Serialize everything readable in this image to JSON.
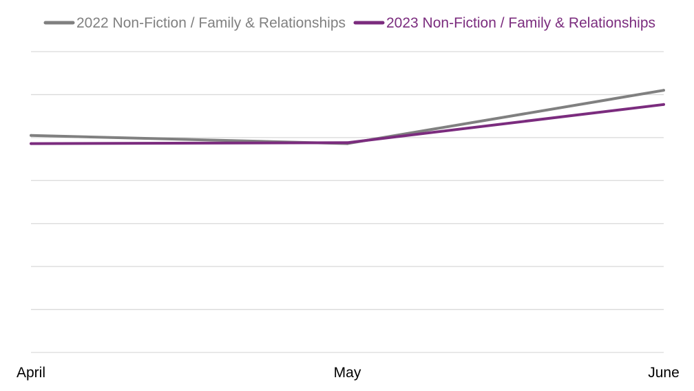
{
  "chart_data": {
    "type": "line",
    "title": "",
    "xlabel": "",
    "ylabel": "",
    "categories": [
      "April",
      "May",
      "June"
    ],
    "series": [
      {
        "name": "2022 Non-Fiction / Family & Relationships",
        "color": "#808080",
        "values": [
          5.05,
          4.86,
          6.1
        ]
      },
      {
        "name": "2023 Non-Fiction / Family & Relationships",
        "color": "#7B2C7E",
        "values": [
          4.86,
          4.88,
          5.77
        ]
      }
    ],
    "ylim": [
      0,
      7
    ],
    "y_gridlines": [
      0,
      1,
      2,
      3,
      4,
      5,
      6,
      7
    ],
    "y_tick_labels_visible": false,
    "grid": true,
    "legend_position": "top"
  }
}
